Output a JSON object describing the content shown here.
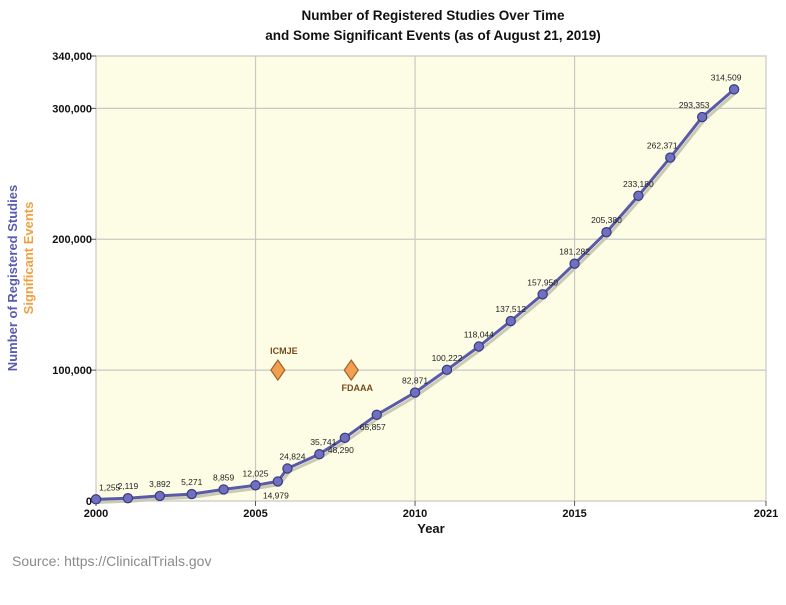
{
  "chart_data": {
    "type": "line",
    "title_line1": "Number of Registered Studies Over Time",
    "title_line2": "and Some Significant Events (as of August 21, 2019)",
    "xlabel": "Year",
    "ylabel_primary": "Number of Registered Studies",
    "ylabel_secondary": "Significant Events",
    "xlim": [
      2000,
      2021
    ],
    "ylim": [
      0,
      340000
    ],
    "x_ticks": [
      2000,
      2005,
      2010,
      2015,
      2021
    ],
    "x_tick_labels": [
      "2000",
      "2005",
      "2010",
      "2015",
      "2021"
    ],
    "y_ticks": [
      0,
      100000,
      200000,
      300000,
      340000
    ],
    "y_tick_labels": [
      "0",
      "100,000",
      "200,000",
      "300,000",
      "340,000"
    ],
    "grid": true,
    "series": [
      {
        "points": [
          {
            "x": 2000.0,
            "y": 1255,
            "label": "1,255"
          },
          {
            "x": 2001.0,
            "y": 2119,
            "label": "2,119"
          },
          {
            "x": 2002.0,
            "y": 3892,
            "label": "3,892"
          },
          {
            "x": 2003.0,
            "y": 5271,
            "label": "5,271"
          },
          {
            "x": 2004.0,
            "y": 8859,
            "label": "8,859"
          },
          {
            "x": 2005.0,
            "y": 12025,
            "label": "12,025"
          },
          {
            "x": 2005.7,
            "y": 14979,
            "label": "14,979"
          },
          {
            "x": 2006.0,
            "y": 24824,
            "label": "24,824"
          },
          {
            "x": 2007.0,
            "y": 35741,
            "label": "35,741"
          },
          {
            "x": 2007.8,
            "y": 48290,
            "label": "48,290"
          },
          {
            "x": 2008.8,
            "y": 65857,
            "label": "65,857"
          },
          {
            "x": 2010.0,
            "y": 82871,
            "label": "82,871"
          },
          {
            "x": 2011.0,
            "y": 100222,
            "label": "100,222"
          },
          {
            "x": 2012.0,
            "y": 118044,
            "label": "118,044"
          },
          {
            "x": 2013.0,
            "y": 137512,
            "label": "137,512"
          },
          {
            "x": 2014.0,
            "y": 157950,
            "label": "157,950"
          },
          {
            "x": 2015.0,
            "y": 181282,
            "label": "181,282"
          },
          {
            "x": 2016.0,
            "y": 205380,
            "label": "205,380"
          },
          {
            "x": 2017.0,
            "y": 233180,
            "label": "233,180"
          },
          {
            "x": 2018.0,
            "y": 262371,
            "label": "262,371"
          },
          {
            "x": 2019.0,
            "y": 293353,
            "label": "293,353"
          },
          {
            "x": 2020.0,
            "y": 314509,
            "label": "314,509"
          }
        ]
      }
    ],
    "events": [
      {
        "label": "ICMJE",
        "x": 2005.7,
        "y": 100000,
        "label_pos": "above"
      },
      {
        "label": "FDAAA",
        "x": 2008.0,
        "y": 100000,
        "label_pos": "below"
      }
    ],
    "colors": {
      "plot_background": "#fdfde6",
      "line": "#5a5aa8",
      "marker_fill": "#7070c0",
      "marker_stroke": "#3a3a80",
      "event_fill": "#f0a050",
      "event_stroke": "#a0602a",
      "ylabel_primary": "#5a5ab0",
      "ylabel_secondary": "#f0a040",
      "grid": "#c8c8c8"
    }
  },
  "source_note": "Source: https://ClinicalTrials.gov"
}
